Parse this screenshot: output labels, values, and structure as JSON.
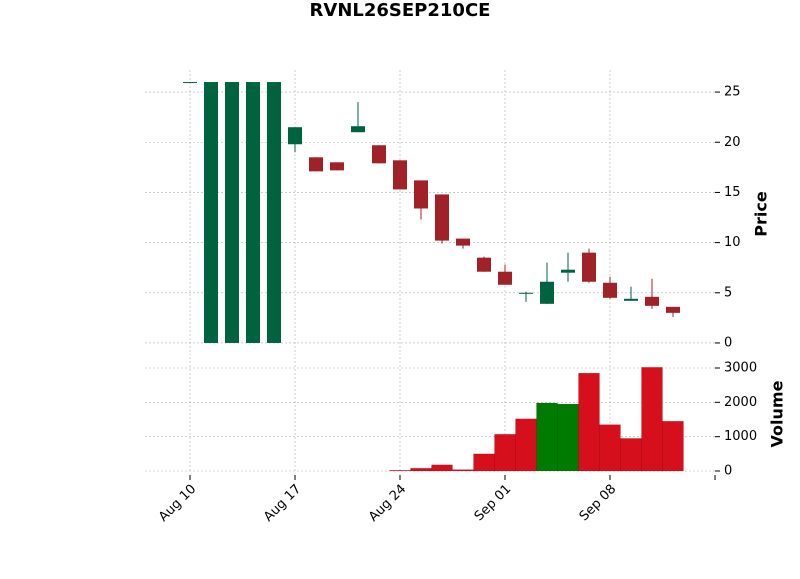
{
  "chart_data": {
    "type": "candlestick",
    "title": "RVNL26SEP210CE",
    "categories": [
      "Aug 10",
      null,
      null,
      null,
      null,
      "Aug 17",
      null,
      null,
      null,
      null,
      "Aug 24",
      null,
      null,
      null,
      null,
      "Sep 01",
      null,
      null,
      null,
      null,
      "Sep 08",
      null,
      null,
      null
    ],
    "open": [
      26,
      0,
      0,
      0,
      0,
      19.8,
      18.5,
      18.0,
      21.0,
      19.7,
      18.2,
      16.2,
      14.8,
      10.4,
      8.5,
      7.1,
      4.9,
      3.9,
      7.0,
      9.0,
      6.0,
      4.2,
      4.6,
      3.6
    ],
    "high": [
      26,
      26,
      26,
      26,
      26,
      21.5,
      18.5,
      18.0,
      24.0,
      19.7,
      18.2,
      16.2,
      14.8,
      10.4,
      8.6,
      7.8,
      5.1,
      8.0,
      9.0,
      9.4,
      6.6,
      5.6,
      6.4,
      3.6
    ],
    "low": [
      26,
      0,
      0,
      0,
      0,
      19.0,
      17.1,
      17.2,
      21.0,
      17.9,
      15.3,
      12.3,
      9.9,
      9.4,
      7.1,
      5.8,
      4.1,
      3.9,
      6.1,
      6.0,
      4.4,
      4.2,
      3.4,
      2.6
    ],
    "close": [
      26,
      26,
      26,
      26,
      26,
      21.5,
      17.1,
      17.2,
      21.6,
      17.9,
      15.3,
      13.4,
      10.2,
      9.7,
      7.1,
      5.8,
      5.0,
      6.1,
      7.3,
      6.1,
      4.5,
      4.4,
      3.7,
      3.0
    ],
    "volume": [
      0,
      0,
      0,
      0,
      0,
      0,
      0,
      0,
      0,
      0,
      20,
      80,
      180,
      40,
      500,
      1070,
      1520,
      1980,
      1950,
      2850,
      1350,
      950,
      3020,
      1450
    ],
    "ylabel": "Price",
    "volume_label": "Volume",
    "ylim": [
      -1.2,
      27.2
    ],
    "yticks": [
      0,
      5,
      10,
      15,
      20,
      25
    ],
    "volume_ylim": [
      0,
      3320
    ],
    "volume_ticks": [
      0,
      1000,
      2000,
      3000
    ],
    "up_color": "#006340",
    "down_color": "#a02128",
    "volume_up_color": "#007a00",
    "volume_down_color": "#d50f1b",
    "grid": true
  }
}
